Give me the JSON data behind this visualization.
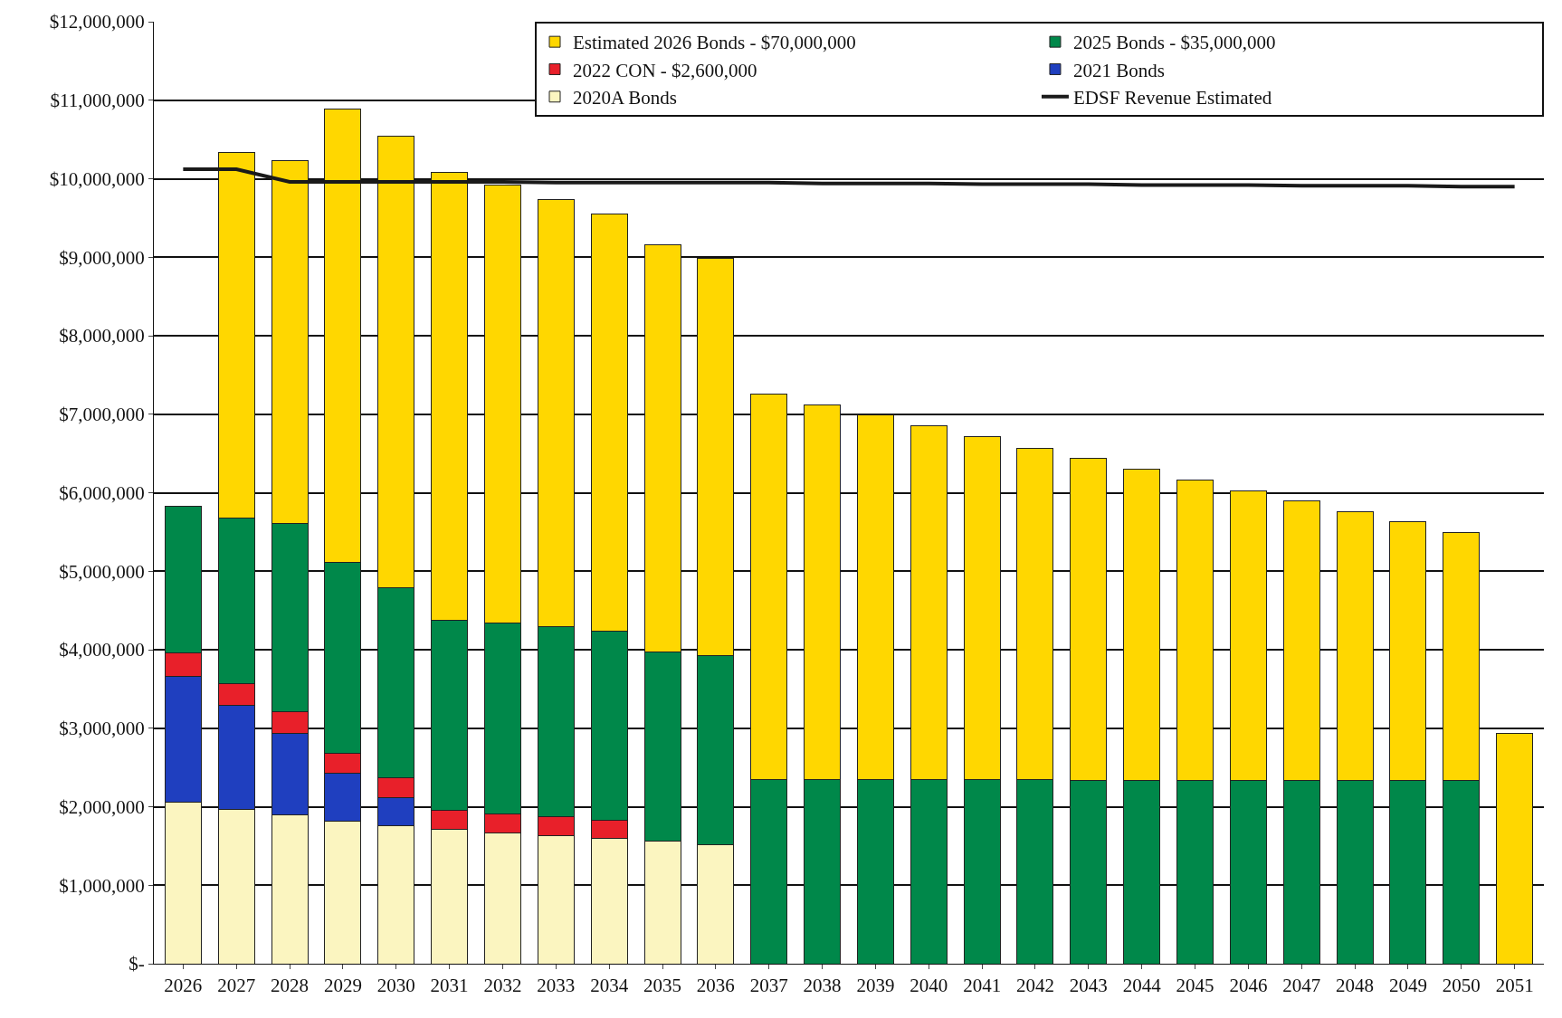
{
  "chart_data": {
    "type": "bar",
    "stacked": true,
    "categories": [
      "2026",
      "2027",
      "2028",
      "2029",
      "2030",
      "2031",
      "2032",
      "2033",
      "2034",
      "2035",
      "2036",
      "2037",
      "2038",
      "2039",
      "2040",
      "2041",
      "2042",
      "2043",
      "2044",
      "2045",
      "2046",
      "2047",
      "2048",
      "2049",
      "2050",
      "2051"
    ],
    "series": [
      {
        "name": "2020A Bonds",
        "color": "#fbf5c0",
        "values": [
          2060000,
          1970000,
          1900000,
          1810000,
          1760000,
          1710000,
          1670000,
          1630000,
          1600000,
          1560000,
          1520000,
          null,
          null,
          null,
          null,
          null,
          null,
          null,
          null,
          null,
          null,
          null,
          null,
          null,
          null,
          null
        ]
      },
      {
        "name": "2021 Bonds",
        "color": "#1f3fbf",
        "values": [
          1600000,
          1320000,
          1030000,
          620000,
          360000,
          null,
          null,
          null,
          null,
          null,
          null,
          null,
          null,
          null,
          null,
          null,
          null,
          null,
          null,
          null,
          null,
          null,
          null,
          null,
          null,
          null
        ]
      },
      {
        "name": "2022 CON - $2,600,000",
        "color": "#e8202a",
        "values": [
          300000,
          280000,
          280000,
          250000,
          250000,
          240000,
          240000,
          240000,
          230000,
          null,
          null,
          null,
          null,
          null,
          null,
          null,
          null,
          null,
          null,
          null,
          null,
          null,
          null,
          null,
          null,
          null
        ]
      },
      {
        "name": "2025 Bonds - $35,000,000",
        "color": "#00884a",
        "values": [
          1870000,
          2110000,
          2400000,
          2430000,
          2420000,
          2420000,
          2430000,
          2420000,
          2410000,
          2410000,
          2410000,
          2350000,
          2350000,
          2350000,
          2350000,
          2350000,
          2350000,
          2340000,
          2340000,
          2340000,
          2340000,
          2340000,
          2340000,
          2340000,
          2340000,
          null
        ]
      },
      {
        "name": "Estimated 2026 Bonds - $70,000,000",
        "color": "#ffd700",
        "values": [
          null,
          4660000,
          4620000,
          5780000,
          5750000,
          5710000,
          5580000,
          5440000,
          5310000,
          5190000,
          5050000,
          4910000,
          4770000,
          4640000,
          4500000,
          4360000,
          4220000,
          4100000,
          3960000,
          3820000,
          3680000,
          3560000,
          3420000,
          3290000,
          3150000,
          2930000
        ]
      },
      {
        "name": "EDSF Revenue Estimated",
        "type": "line",
        "color": "#1a1a1a",
        "values": [
          10120000,
          10120000,
          9960000,
          9960000,
          9960000,
          9960000,
          9960000,
          9950000,
          9950000,
          9950000,
          9950000,
          9950000,
          9940000,
          9940000,
          9940000,
          9930000,
          9930000,
          9930000,
          9920000,
          9920000,
          9920000,
          9910000,
          9910000,
          9910000,
          9900000,
          9900000
        ]
      }
    ],
    "ylim": [
      0,
      12000000
    ],
    "yticks": [
      {
        "value": 0,
        "label": "$-"
      },
      {
        "value": 1000000,
        "label": "$1,000,000"
      },
      {
        "value": 2000000,
        "label": "$2,000,000"
      },
      {
        "value": 3000000,
        "label": "$3,000,000"
      },
      {
        "value": 4000000,
        "label": "$4,000,000"
      },
      {
        "value": 5000000,
        "label": "$5,000,000"
      },
      {
        "value": 6000000,
        "label": "$6,000,000"
      },
      {
        "value": 7000000,
        "label": "$7,000,000"
      },
      {
        "value": 8000000,
        "label": "$8,000,000"
      },
      {
        "value": 9000000,
        "label": "$9,000,000"
      },
      {
        "value": 10000000,
        "label": "$10,000,000"
      },
      {
        "value": 11000000,
        "label": "$11,000,000"
      },
      {
        "value": 12000000,
        "label": "$12,000,000"
      }
    ],
    "grid": "y",
    "legend": "top right",
    "line_style": "solid",
    "marker": "none"
  }
}
